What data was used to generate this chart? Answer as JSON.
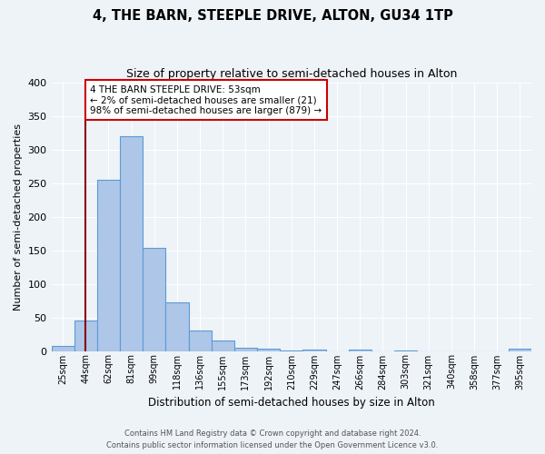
{
  "title": "4, THE BARN, STEEPLE DRIVE, ALTON, GU34 1TP",
  "subtitle": "Size of property relative to semi-detached houses in Alton",
  "xlabel": "Distribution of semi-detached houses by size in Alton",
  "ylabel": "Number of semi-detached properties",
  "bin_labels": [
    "25sqm",
    "44sqm",
    "62sqm",
    "81sqm",
    "99sqm",
    "118sqm",
    "136sqm",
    "155sqm",
    "173sqm",
    "192sqm",
    "210sqm",
    "229sqm",
    "247sqm",
    "266sqm",
    "284sqm",
    "303sqm",
    "321sqm",
    "340sqm",
    "358sqm",
    "377sqm",
    "395sqm"
  ],
  "bar_values": [
    8,
    45,
    255,
    320,
    153,
    73,
    30,
    15,
    5,
    3,
    1,
    2,
    0,
    2,
    0,
    1,
    0,
    0,
    0,
    0,
    3
  ],
  "bar_color": "#aec6e8",
  "bar_edge_color": "#5b9bd5",
  "property_line_x": 53,
  "bin_starts": [
    25,
    44,
    62,
    81,
    99,
    118,
    136,
    155,
    173,
    192,
    210,
    229,
    247,
    266,
    284,
    303,
    321,
    340,
    358,
    377,
    395
  ],
  "annotation_text_line1": "4 THE BARN STEEPLE DRIVE: 53sqm",
  "annotation_text_line2": "← 2% of semi-detached houses are smaller (21)",
  "annotation_text_line3": "98% of semi-detached houses are larger (879) →",
  "vline_color": "#8b0000",
  "annotation_box_edge_color": "#cc0000",
  "ylim": [
    0,
    400
  ],
  "yticks": [
    0,
    50,
    100,
    150,
    200,
    250,
    300,
    350,
    400
  ],
  "footer_line1": "Contains HM Land Registry data © Crown copyright and database right 2024.",
  "footer_line2": "Contains public sector information licensed under the Open Government Licence v3.0.",
  "bg_color": "#eef3f8",
  "plot_bg_color": "#eef3f8"
}
